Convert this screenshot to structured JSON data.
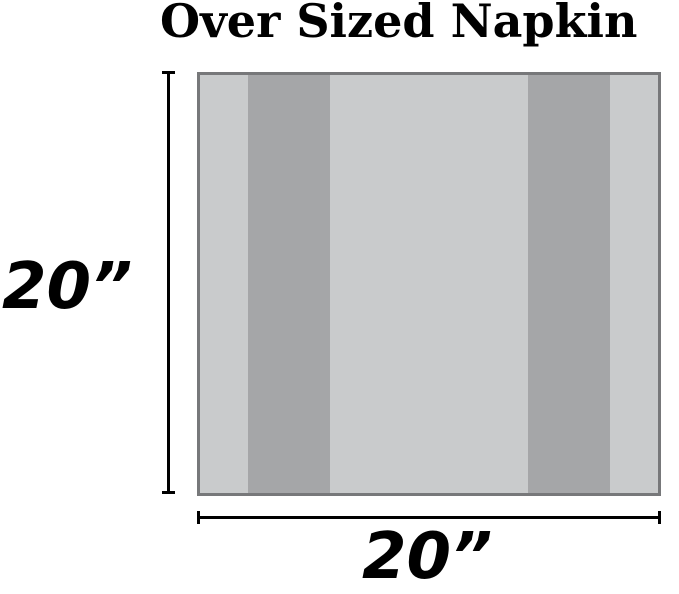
{
  "title": "Over Sized Napkin",
  "height_label": "20”",
  "width_label": "20”",
  "colors": {
    "napkin_light": "#c9cbcc",
    "napkin_stripe": "#a5a6a8",
    "border": "#77787a"
  }
}
